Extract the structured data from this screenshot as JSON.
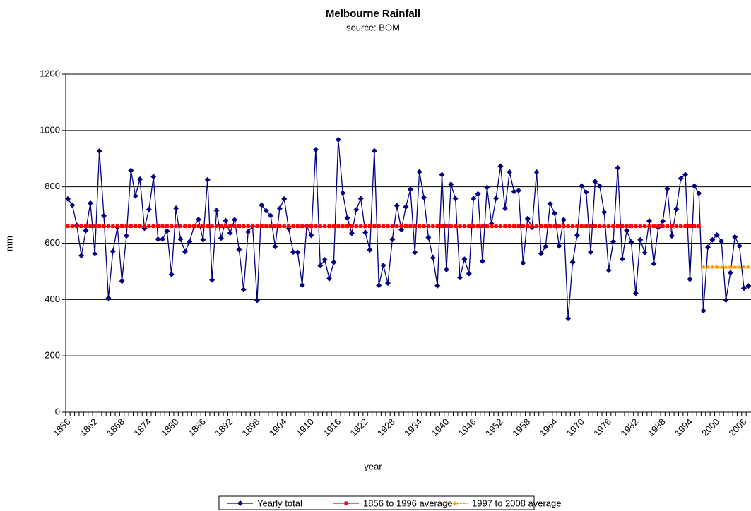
{
  "chart_data": {
    "type": "line",
    "title": "Melbourne Rainfall",
    "subtitle": "source: BOM",
    "x_label": "year",
    "y_label": "mm",
    "categories": [
      "1856",
      null,
      null,
      null,
      null,
      null,
      "1862",
      null,
      null,
      null,
      null,
      null,
      "1868",
      null,
      null,
      null,
      null,
      null,
      "1874",
      null,
      null,
      null,
      null,
      null,
      "1880",
      null,
      null,
      null,
      null,
      null,
      "1886",
      null,
      null,
      null,
      null,
      null,
      "1892",
      null,
      null,
      null,
      null,
      null,
      "1898",
      null,
      null,
      null,
      null,
      null,
      "1904",
      null,
      null,
      null,
      null,
      null,
      "1910",
      null,
      null,
      null,
      null,
      null,
      "1916",
      null,
      null,
      null,
      null,
      null,
      "1922",
      null,
      null,
      null,
      null,
      null,
      "1928",
      null,
      null,
      null,
      null,
      null,
      "1934",
      null,
      null,
      null,
      null,
      null,
      "1940",
      null,
      null,
      null,
      null,
      null,
      "1946",
      null,
      null,
      null,
      null,
      null,
      "1952",
      null,
      null,
      null,
      null,
      null,
      "1958",
      null,
      null,
      null,
      null,
      null,
      "1964",
      null,
      null,
      null,
      null,
      null,
      "1970",
      null,
      null,
      null,
      null,
      null,
      "1976",
      null,
      null,
      null,
      null,
      null,
      "1982",
      null,
      null,
      null,
      null,
      null,
      "1988",
      null,
      null,
      null,
      null,
      null,
      "1994",
      null,
      null,
      null,
      null,
      null,
      "2000",
      null,
      null,
      null,
      null,
      null,
      "2006",
      null
    ],
    "series": [
      {
        "name": "Yearly total",
        "color": "#000080",
        "marker": "diamond",
        "dashed": false,
        "values": [
          757,
          735,
          663,
          556,
          645,
          742,
          562,
          927,
          697,
          405,
          571,
          657,
          465,
          626,
          858,
          768,
          827,
          653,
          720,
          836,
          614,
          614,
          643,
          489,
          724,
          614,
          570,
          605,
          660,
          684,
          612,
          825,
          469,
          716,
          618,
          680,
          636,
          683,
          577,
          435,
          640,
          660,
          397,
          735,
          715,
          698,
          588,
          723,
          757,
          652,
          568,
          567,
          451,
          660,
          628,
          932,
          520,
          541,
          474,
          532,
          967,
          778,
          690,
          635,
          719,
          758,
          638,
          576,
          928,
          450,
          521,
          458,
          613,
          733,
          648,
          729,
          791,
          567,
          853,
          762,
          620,
          548,
          449,
          843,
          506,
          809,
          758,
          478,
          543,
          492,
          758,
          775,
          536,
          798,
          669,
          759,
          873,
          724,
          852,
          783,
          787,
          530,
          687,
          656,
          852,
          563,
          588,
          740,
          706,
          590,
          683,
          333,
          533,
          628,
          803,
          781,
          568,
          819,
          803,
          710,
          504,
          605,
          867,
          544,
          645,
          604,
          422,
          612,
          566,
          679,
          527,
          656,
          678,
          793,
          626,
          721,
          830,
          843,
          472,
          803,
          777,
          360,
          586,
          612,
          629,
          607,
          398,
          495,
          622,
          590,
          440,
          448
        ]
      },
      {
        "name": "1856 to 1996 average",
        "color": "#ff0000",
        "marker": "square",
        "dashed": false,
        "values": [
          660,
          660,
          660,
          660,
          660,
          660,
          660,
          660,
          660,
          660,
          660,
          660,
          660,
          660,
          660,
          660,
          660,
          660,
          660,
          660,
          660,
          660,
          660,
          660,
          660,
          660,
          660,
          660,
          660,
          660,
          660,
          660,
          660,
          660,
          660,
          660,
          660,
          660,
          660,
          660,
          660,
          660,
          660,
          660,
          660,
          660,
          660,
          660,
          660,
          660,
          660,
          660,
          660,
          660,
          660,
          660,
          660,
          660,
          660,
          660,
          660,
          660,
          660,
          660,
          660,
          660,
          660,
          660,
          660,
          660,
          660,
          660,
          660,
          660,
          660,
          660,
          660,
          660,
          660,
          660,
          660,
          660,
          660,
          660,
          660,
          660,
          660,
          660,
          660,
          660,
          660,
          660,
          660,
          660,
          660,
          660,
          660,
          660,
          660,
          660,
          660,
          660,
          660,
          660,
          660,
          660,
          660,
          660,
          660,
          660,
          660,
          660,
          660,
          660,
          660,
          660,
          660,
          660,
          660,
          660,
          660,
          660,
          660,
          660,
          660,
          660,
          660,
          660,
          660,
          660,
          660,
          660,
          660,
          660,
          660,
          660,
          660,
          660,
          660,
          660,
          660,
          null,
          null,
          null,
          null,
          null,
          null,
          null,
          null,
          null,
          null,
          null
        ]
      },
      {
        "name": "1997 to 2008 average",
        "color": "#ff9900",
        "marker": "triangle",
        "dashed": true,
        "values": [
          null,
          null,
          null,
          null,
          null,
          null,
          null,
          null,
          null,
          null,
          null,
          null,
          null,
          null,
          null,
          null,
          null,
          null,
          null,
          null,
          null,
          null,
          null,
          null,
          null,
          null,
          null,
          null,
          null,
          null,
          null,
          null,
          null,
          null,
          null,
          null,
          null,
          null,
          null,
          null,
          null,
          null,
          null,
          null,
          null,
          null,
          null,
          null,
          null,
          null,
          null,
          null,
          null,
          null,
          null,
          null,
          null,
          null,
          null,
          null,
          null,
          null,
          null,
          null,
          null,
          null,
          null,
          null,
          null,
          null,
          null,
          null,
          null,
          null,
          null,
          null,
          null,
          null,
          null,
          null,
          null,
          null,
          null,
          null,
          null,
          null,
          null,
          null,
          null,
          null,
          null,
          null,
          null,
          null,
          null,
          null,
          null,
          null,
          null,
          null,
          null,
          null,
          null,
          null,
          null,
          null,
          null,
          null,
          null,
          null,
          null,
          null,
          null,
          null,
          null,
          null,
          null,
          null,
          null,
          null,
          null,
          null,
          null,
          null,
          null,
          null,
          null,
          null,
          null,
          null,
          null,
          null,
          null,
          null,
          null,
          null,
          null,
          null,
          null,
          null,
          null,
          516,
          516,
          516,
          516,
          516,
          516,
          516,
          516,
          516,
          516,
          516
        ]
      }
    ],
    "ylim": [
      0,
      1200
    ],
    "yticks": [
      0,
      200,
      400,
      600,
      800,
      1000,
      1200
    ],
    "grid": true,
    "legend": "bottom"
  }
}
